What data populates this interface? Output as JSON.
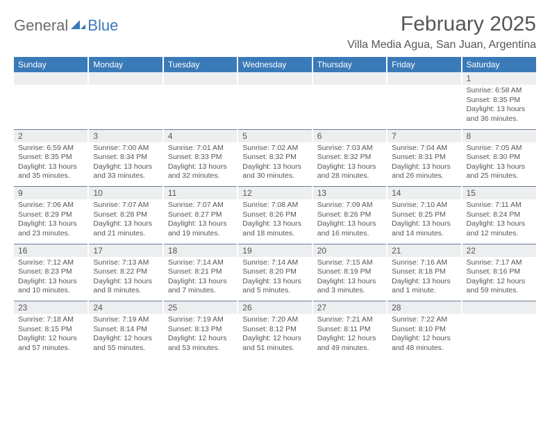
{
  "logo": {
    "general": "General",
    "blue": "Blue",
    "iconColor": "#3a7ab8"
  },
  "title": "February 2025",
  "location": "Villa Media Agua, San Juan, Argentina",
  "colors": {
    "headerBg": "#3a7ab8",
    "headerText": "#ffffff",
    "dayNumBg": "#eceef0",
    "cellSep": "#6b7a94",
    "bodyText": "#555555"
  },
  "dayHeaders": [
    "Sunday",
    "Monday",
    "Tuesday",
    "Wednesday",
    "Thursday",
    "Friday",
    "Saturday"
  ],
  "weeks": [
    [
      null,
      null,
      null,
      null,
      null,
      null,
      {
        "n": "1",
        "sr": "6:58 AM",
        "ss": "8:35 PM",
        "dl": "13 hours and 36 minutes."
      }
    ],
    [
      {
        "n": "2",
        "sr": "6:59 AM",
        "ss": "8:35 PM",
        "dl": "13 hours and 35 minutes."
      },
      {
        "n": "3",
        "sr": "7:00 AM",
        "ss": "8:34 PM",
        "dl": "13 hours and 33 minutes."
      },
      {
        "n": "4",
        "sr": "7:01 AM",
        "ss": "8:33 PM",
        "dl": "13 hours and 32 minutes."
      },
      {
        "n": "5",
        "sr": "7:02 AM",
        "ss": "8:32 PM",
        "dl": "13 hours and 30 minutes."
      },
      {
        "n": "6",
        "sr": "7:03 AM",
        "ss": "8:32 PM",
        "dl": "13 hours and 28 minutes."
      },
      {
        "n": "7",
        "sr": "7:04 AM",
        "ss": "8:31 PM",
        "dl": "13 hours and 26 minutes."
      },
      {
        "n": "8",
        "sr": "7:05 AM",
        "ss": "8:30 PM",
        "dl": "13 hours and 25 minutes."
      }
    ],
    [
      {
        "n": "9",
        "sr": "7:06 AM",
        "ss": "8:29 PM",
        "dl": "13 hours and 23 minutes."
      },
      {
        "n": "10",
        "sr": "7:07 AM",
        "ss": "8:28 PM",
        "dl": "13 hours and 21 minutes."
      },
      {
        "n": "11",
        "sr": "7:07 AM",
        "ss": "8:27 PM",
        "dl": "13 hours and 19 minutes."
      },
      {
        "n": "12",
        "sr": "7:08 AM",
        "ss": "8:26 PM",
        "dl": "13 hours and 18 minutes."
      },
      {
        "n": "13",
        "sr": "7:09 AM",
        "ss": "8:26 PM",
        "dl": "13 hours and 16 minutes."
      },
      {
        "n": "14",
        "sr": "7:10 AM",
        "ss": "8:25 PM",
        "dl": "13 hours and 14 minutes."
      },
      {
        "n": "15",
        "sr": "7:11 AM",
        "ss": "8:24 PM",
        "dl": "13 hours and 12 minutes."
      }
    ],
    [
      {
        "n": "16",
        "sr": "7:12 AM",
        "ss": "8:23 PM",
        "dl": "13 hours and 10 minutes."
      },
      {
        "n": "17",
        "sr": "7:13 AM",
        "ss": "8:22 PM",
        "dl": "13 hours and 8 minutes."
      },
      {
        "n": "18",
        "sr": "7:14 AM",
        "ss": "8:21 PM",
        "dl": "13 hours and 7 minutes."
      },
      {
        "n": "19",
        "sr": "7:14 AM",
        "ss": "8:20 PM",
        "dl": "13 hours and 5 minutes."
      },
      {
        "n": "20",
        "sr": "7:15 AM",
        "ss": "8:19 PM",
        "dl": "13 hours and 3 minutes."
      },
      {
        "n": "21",
        "sr": "7:16 AM",
        "ss": "8:18 PM",
        "dl": "13 hours and 1 minute."
      },
      {
        "n": "22",
        "sr": "7:17 AM",
        "ss": "8:16 PM",
        "dl": "12 hours and 59 minutes."
      }
    ],
    [
      {
        "n": "23",
        "sr": "7:18 AM",
        "ss": "8:15 PM",
        "dl": "12 hours and 57 minutes."
      },
      {
        "n": "24",
        "sr": "7:19 AM",
        "ss": "8:14 PM",
        "dl": "12 hours and 55 minutes."
      },
      {
        "n": "25",
        "sr": "7:19 AM",
        "ss": "8:13 PM",
        "dl": "12 hours and 53 minutes."
      },
      {
        "n": "26",
        "sr": "7:20 AM",
        "ss": "8:12 PM",
        "dl": "12 hours and 51 minutes."
      },
      {
        "n": "27",
        "sr": "7:21 AM",
        "ss": "8:11 PM",
        "dl": "12 hours and 49 minutes."
      },
      {
        "n": "28",
        "sr": "7:22 AM",
        "ss": "8:10 PM",
        "dl": "12 hours and 48 minutes."
      },
      null
    ]
  ],
  "labels": {
    "sunrise": "Sunrise: ",
    "sunset": "Sunset: ",
    "daylight": "Daylight: "
  }
}
